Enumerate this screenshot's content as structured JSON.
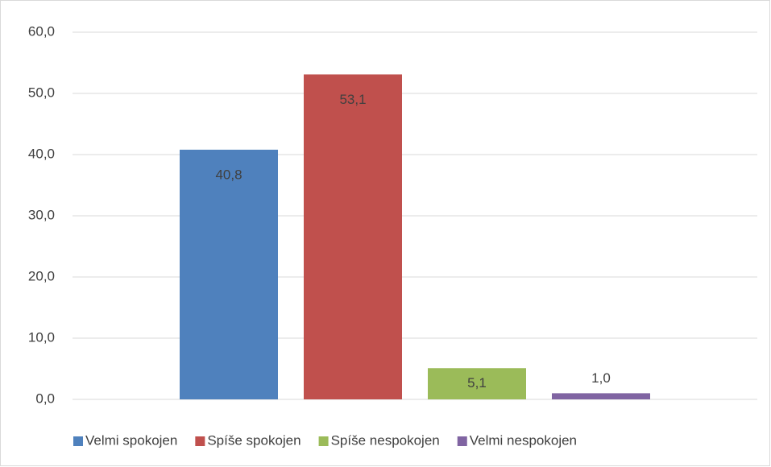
{
  "chart_data": {
    "type": "bar",
    "categories": [
      null
    ],
    "series": [
      {
        "name": "Velmi spokojen",
        "color": "#4f81bd",
        "values": [
          40.8
        ],
        "value_labels": [
          "40,8"
        ]
      },
      {
        "name": "Spíše spokojen",
        "color": "#c0504d",
        "values": [
          53.1
        ],
        "value_labels": [
          "53,1"
        ]
      },
      {
        "name": "Spíše nespokojen",
        "color": "#9bbb59",
        "values": [
          5.1
        ],
        "value_labels": [
          "5,1"
        ]
      },
      {
        "name": "Velmi nespokojen",
        "color": "#8064a2",
        "values": [
          1.0
        ],
        "value_labels": [
          "1,0"
        ]
      }
    ],
    "ylim": [
      0,
      60
    ],
    "yticks": [
      {
        "value": 0,
        "label": "0,0"
      },
      {
        "value": 10,
        "label": "10,0"
      },
      {
        "value": 20,
        "label": "20,0"
      },
      {
        "value": 30,
        "label": "30,0"
      },
      {
        "value": 40,
        "label": "40,0"
      },
      {
        "value": 50,
        "label": "50,0"
      },
      {
        "value": 60,
        "label": "60,0"
      }
    ],
    "grid": true,
    "legend": "bottom"
  }
}
